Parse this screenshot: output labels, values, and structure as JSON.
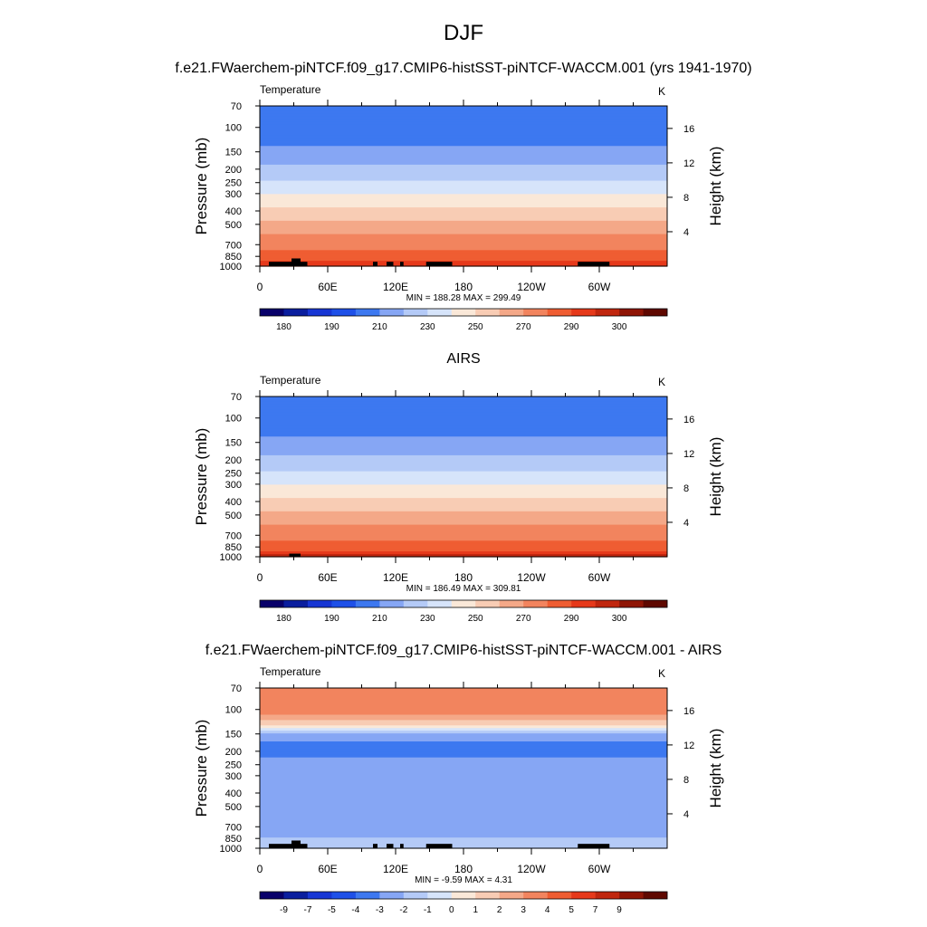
{
  "figure": {
    "title": "DJF",
    "model_subtitle": "f.e21.FWaerchem-piNTCF.f09_g17.CMIP6-histSST-piNTCF-WACCM.001 (yrs 1941-1970)"
  },
  "chart_data": [
    {
      "type": "heatmap",
      "panel": "model",
      "variable": "Temperature",
      "units": "K",
      "ylabel": "Pressure (mb)",
      "ylabel_right": "Height (km)",
      "x_ticks": [
        "0",
        "60E",
        "120E",
        "180",
        "120W",
        "60W"
      ],
      "x_range_deg": [
        0,
        360
      ],
      "p_ticks": [
        "70",
        "100",
        "150",
        "200",
        "250",
        "300",
        "400",
        "500",
        "700",
        "850",
        "1000"
      ],
      "p_range": [
        70,
        1000
      ],
      "height_ticks": [
        "4",
        "8",
        "12",
        "16"
      ],
      "min_max_label": "MIN = 188.28  MAX = 299.49",
      "min": 188.28,
      "max": 299.49,
      "colorbar_labels": [
        "180",
        "190",
        "210",
        "230",
        "250",
        "270",
        "290",
        "300"
      ],
      "profile_levels_mb": [
        70,
        100,
        150,
        200,
        250,
        300,
        400,
        500,
        700,
        850,
        1000
      ],
      "profile_temps_k": [
        205,
        200,
        213,
        222,
        231,
        240,
        252,
        263,
        276,
        285,
        295
      ],
      "terrain_lon_deg": [
        [
          8,
          30
        ],
        [
          28,
          36
        ],
        [
          34,
          42
        ],
        [
          100,
          104
        ],
        [
          112,
          118
        ],
        [
          124,
          127
        ],
        [
          147,
          170
        ],
        [
          281,
          309
        ]
      ],
      "terrain_top_mb": [
        [
          8,
          930
        ],
        [
          28,
          880
        ],
        [
          34,
          930
        ],
        [
          100,
          930
        ],
        [
          112,
          930
        ],
        [
          124,
          930
        ],
        [
          147,
          930
        ],
        [
          281,
          930
        ]
      ]
    },
    {
      "type": "heatmap",
      "panel": "obs",
      "subtitle": "AIRS",
      "variable": "Temperature",
      "units": "K",
      "ylabel": "Pressure (mb)",
      "ylabel_right": "Height (km)",
      "x_ticks": [
        "0",
        "60E",
        "120E",
        "180",
        "120W",
        "60W"
      ],
      "x_range_deg": [
        0,
        360
      ],
      "p_ticks": [
        "70",
        "100",
        "150",
        "200",
        "250",
        "300",
        "400",
        "500",
        "700",
        "850",
        "1000"
      ],
      "p_range": [
        70,
        1000
      ],
      "height_ticks": [
        "4",
        "8",
        "12",
        "16"
      ],
      "min_max_label": "MIN = 186.49  MAX = 309.81",
      "min": 186.49,
      "max": 309.81,
      "colorbar_labels": [
        "180",
        "190",
        "210",
        "230",
        "250",
        "270",
        "290",
        "300"
      ],
      "profile_levels_mb": [
        70,
        100,
        150,
        200,
        250,
        300,
        400,
        500,
        700,
        850,
        1000
      ],
      "profile_temps_k": [
        205,
        200,
        213,
        222,
        231,
        240,
        252,
        263,
        276,
        285,
        297
      ],
      "terrain_lon_deg": [
        [
          26,
          36
        ]
      ],
      "terrain_top_mb": [
        [
          26,
          950
        ]
      ]
    },
    {
      "type": "heatmap",
      "panel": "difference",
      "subtitle": "f.e21.FWaerchem-piNTCF.f09_g17.CMIP6-histSST-piNTCF-WACCM.001 - AIRS",
      "variable": "Temperature",
      "units": "K",
      "ylabel": "Pressure (mb)",
      "ylabel_right": "Height (km)",
      "x_ticks": [
        "0",
        "60E",
        "120E",
        "180",
        "120W",
        "60W"
      ],
      "x_range_deg": [
        0,
        360
      ],
      "p_ticks": [
        "70",
        "100",
        "150",
        "200",
        "250",
        "300",
        "400",
        "500",
        "700",
        "850",
        "1000"
      ],
      "p_range": [
        70,
        1000
      ],
      "height_ticks": [
        "4",
        "8",
        "12",
        "16"
      ],
      "min_max_label": "MIN =  -9.59  MAX =   4.31",
      "min": -9.59,
      "max": 4.31,
      "colorbar_labels": [
        "-9",
        "-7",
        "-5",
        "-4",
        "-3",
        "-2",
        "-1",
        "0",
        "1",
        "2",
        "3",
        "4",
        "5",
        "7",
        "9"
      ],
      "profile_levels_mb": [
        70,
        100,
        130,
        150,
        200,
        250,
        300,
        400,
        500,
        700,
        850,
        1000
      ],
      "profile_diff_k": [
        3.5,
        3.5,
        1.5,
        -2.5,
        -3.5,
        -2.5,
        -2.5,
        -2.5,
        -2.5,
        -3.0,
        -2.0,
        -1.0
      ],
      "terrain_lon_deg": [
        [
          8,
          30
        ],
        [
          28,
          36
        ],
        [
          34,
          42
        ],
        [
          100,
          104
        ],
        [
          112,
          118
        ],
        [
          124,
          127
        ],
        [
          147,
          170
        ],
        [
          281,
          309
        ]
      ],
      "terrain_top_mb": [
        [
          8,
          930
        ],
        [
          28,
          880
        ],
        [
          34,
          930
        ],
        [
          100,
          930
        ],
        [
          112,
          930
        ],
        [
          124,
          930
        ],
        [
          147,
          930
        ],
        [
          281,
          930
        ]
      ]
    }
  ],
  "colors": {
    "temperature_scale": [
      "#08006a",
      "#0a1e9e",
      "#1736d4",
      "#1e50e8",
      "#3d78f0",
      "#86a6f4",
      "#b4caf7",
      "#d6e4fa",
      "#fae8d8",
      "#f8ccb4",
      "#f4a888",
      "#f2845e",
      "#ef5d32",
      "#e6391a",
      "#c0260e",
      "#8f1505",
      "#5f0800"
    ],
    "difference_scale": [
      "#08006a",
      "#0a1e9e",
      "#1736d4",
      "#1e50e8",
      "#3d78f0",
      "#86a6f4",
      "#b4caf7",
      "#d6e4fa",
      "#fae8d8",
      "#f8ccb4",
      "#f4a888",
      "#f2845e",
      "#ef5d32",
      "#e6391a",
      "#c0260e",
      "#8f1505",
      "#5f0800"
    ],
    "terrain": "#000000"
  }
}
